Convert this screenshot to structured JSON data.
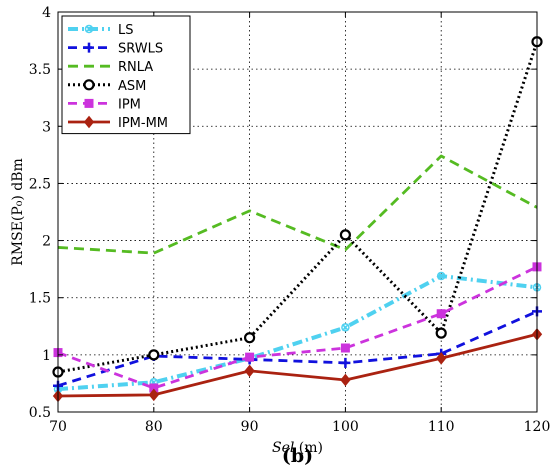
{
  "chart_data": {
    "type": "line",
    "title": "",
    "panel_label": "(b)",
    "xlabel_italic": "Sel",
    "xlabel_unit": " (m)",
    "ylabel": "RMSE(P₀) dBm",
    "x": [
      70,
      80,
      90,
      100,
      110,
      120
    ],
    "xticks": [
      "70",
      "80",
      "90",
      "100",
      "110",
      "120"
    ],
    "yticks": [
      "0.5",
      "1",
      "1.5",
      "2",
      "2.5",
      "3",
      "3.5",
      "4"
    ],
    "xlim": [
      70,
      120
    ],
    "ylim": [
      0.5,
      4
    ],
    "grid": true,
    "legend_position": "top-left",
    "series": [
      {
        "name": "LS",
        "color": "#4fd1f0",
        "dash": "10 4 2 4",
        "marker": "x-circle",
        "values": [
          0.7,
          0.76,
          0.97,
          1.24,
          1.69,
          1.59
        ]
      },
      {
        "name": "SRWLS",
        "color": "#1111dd",
        "dash": "9 6",
        "marker": "plus",
        "values": [
          0.73,
          0.99,
          0.96,
          0.93,
          1.01,
          1.38
        ]
      },
      {
        "name": "RNLA",
        "color": "#55bb22",
        "dash": "10 6",
        "marker": "none",
        "values": [
          1.94,
          1.89,
          2.26,
          1.92,
          2.74,
          2.29
        ]
      },
      {
        "name": "ASM",
        "color": "#000000",
        "dash": "2 3",
        "marker": "ring",
        "values": [
          0.85,
          1.0,
          1.15,
          2.05,
          1.19,
          3.74
        ]
      },
      {
        "name": "IPM",
        "color": "#cc33dd",
        "dash": "9 6",
        "marker": "square",
        "values": [
          1.02,
          0.71,
          0.98,
          1.06,
          1.36,
          1.77
        ]
      },
      {
        "name": "IPM-MM",
        "color": "#aa2211",
        "dash": "",
        "marker": "diamond",
        "values": [
          0.64,
          0.65,
          0.86,
          0.78,
          0.97,
          1.18
        ]
      }
    ]
  }
}
